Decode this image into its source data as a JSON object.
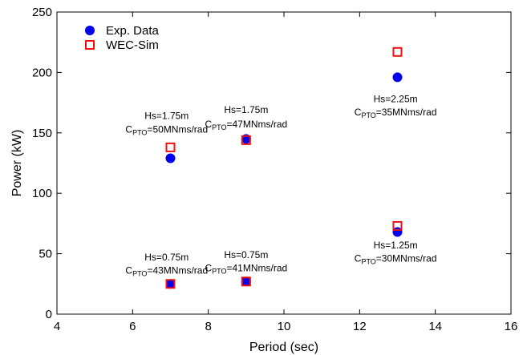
{
  "chart_data": {
    "type": "scatter",
    "xlabel": "Period (sec)",
    "ylabel": "Power (kW)",
    "xlim": [
      4,
      16
    ],
    "ylim": [
      0,
      250
    ],
    "xticks": [
      4,
      6,
      8,
      10,
      12,
      14,
      16
    ],
    "yticks": [
      0,
      50,
      100,
      150,
      200,
      250
    ],
    "grid": false,
    "legend_position": "top-left",
    "series": [
      {
        "name": "Exp. Data",
        "marker": "filled-circle",
        "color": "#0000ee",
        "points": [
          {
            "x": 7,
            "y": 129
          },
          {
            "x": 9,
            "y": 145
          },
          {
            "x": 13,
            "y": 196
          },
          {
            "x": 7,
            "y": 25
          },
          {
            "x": 9,
            "y": 27
          },
          {
            "x": 13,
            "y": 68
          }
        ]
      },
      {
        "name": "WEC-Sim",
        "marker": "open-square",
        "color": "#ee1111",
        "points": [
          {
            "x": 7,
            "y": 138
          },
          {
            "x": 9,
            "y": 144
          },
          {
            "x": 13,
            "y": 217
          },
          {
            "x": 7,
            "y": 25
          },
          {
            "x": 9,
            "y": 27
          },
          {
            "x": 13,
            "y": 73
          }
        ]
      }
    ],
    "annotations": [
      {
        "hs": "Hs=1.75m",
        "c_prefix": "C",
        "c_sub": "PTO",
        "c_suffix": "=50MNms/rad",
        "x": 6.9,
        "y_hs": 164,
        "y_c": 153
      },
      {
        "hs": "Hs=1.75m",
        "c_prefix": "C",
        "c_sub": "PTO",
        "c_suffix": "=47MNms/rad",
        "x": 9.0,
        "y_hs": 169,
        "y_c": 157
      },
      {
        "hs": "Hs=2.25m",
        "c_prefix": "C",
        "c_sub": "PTO",
        "c_suffix": "=35MNms/rad",
        "x": 12.95,
        "y_hs": 178,
        "y_c": 167
      },
      {
        "hs": "Hs=0.75m",
        "c_prefix": "C",
        "c_sub": "PTO",
        "c_suffix": "=43MNms/rad",
        "x": 6.9,
        "y_hs": 47,
        "y_c": 36
      },
      {
        "hs": "Hs=0.75m",
        "c_prefix": "C",
        "c_sub": "PTO",
        "c_suffix": "=41MNms/rad",
        "x": 9.0,
        "y_hs": 49,
        "y_c": 38
      },
      {
        "hs": "Hs=1.25m",
        "c_prefix": "C",
        "c_sub": "PTO",
        "c_suffix": "=30MNms/rad",
        "x": 12.95,
        "y_hs": 57,
        "y_c": 46
      }
    ]
  }
}
